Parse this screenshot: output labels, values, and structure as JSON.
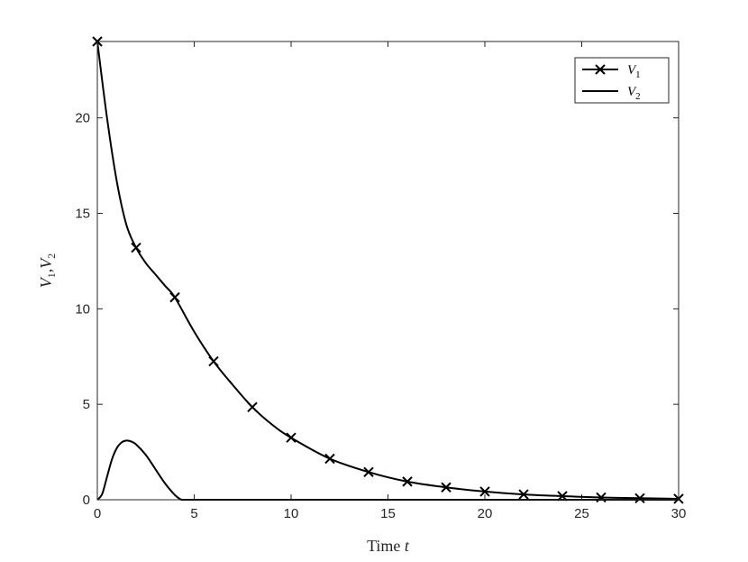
{
  "chart_data": {
    "type": "line",
    "xlabel": {
      "prefix": "Time ",
      "var": "t"
    },
    "ylabel": "V1,V2",
    "xlim": [
      0,
      30
    ],
    "ylim": [
      0,
      24
    ],
    "xticks": [
      0,
      5,
      10,
      15,
      20,
      25,
      30
    ],
    "yticks": [
      0,
      5,
      10,
      15,
      20
    ],
    "grid": false,
    "legend_position": "top-right",
    "series": [
      {
        "name": "V1",
        "marker": "x",
        "color": "#000000",
        "x": [
          0,
          0.5,
          1,
          1.5,
          2,
          2.5,
          3,
          3.5,
          4,
          5,
          6,
          7,
          8,
          9,
          10,
          12,
          14,
          16,
          18,
          20,
          22,
          24,
          26,
          28,
          30
        ],
        "y": [
          24.0,
          20.0,
          16.7,
          14.4,
          13.2,
          12.4,
          11.8,
          11.2,
          10.6,
          8.8,
          7.25,
          6.0,
          4.85,
          3.95,
          3.25,
          2.15,
          1.45,
          0.95,
          0.65,
          0.43,
          0.28,
          0.19,
          0.12,
          0.08,
          0.05
        ],
        "marker_x": [
          0,
          2,
          4,
          6,
          8,
          10,
          12,
          14,
          16,
          18,
          20,
          22,
          24,
          26,
          28,
          30
        ],
        "marker_y": [
          24.0,
          13.2,
          10.6,
          7.25,
          4.85,
          3.25,
          2.15,
          1.45,
          0.95,
          0.65,
          0.43,
          0.28,
          0.19,
          0.12,
          0.08,
          0.05
        ]
      },
      {
        "name": "V2",
        "marker": "none",
        "color": "#000000",
        "x": [
          0,
          0.25,
          0.5,
          0.75,
          1.0,
          1.25,
          1.5,
          1.75,
          2.0,
          2.5,
          3.0,
          3.5,
          4.0,
          4.3,
          4.5,
          6,
          10,
          15,
          20,
          25,
          30
        ],
        "y": [
          0,
          0.3,
          1.2,
          2.1,
          2.7,
          3.0,
          3.1,
          3.05,
          2.9,
          2.35,
          1.6,
          0.85,
          0.25,
          0.02,
          0,
          0,
          0,
          0,
          0,
          0,
          0
        ]
      }
    ]
  }
}
